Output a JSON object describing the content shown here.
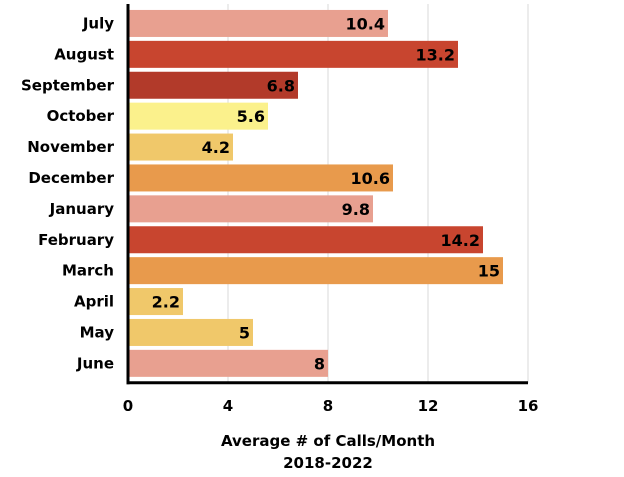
{
  "chart_data": {
    "type": "bar",
    "orientation": "horizontal",
    "categories": [
      "July",
      "August",
      "September",
      "October",
      "November",
      "December",
      "January",
      "February",
      "March",
      "April",
      "May",
      "June"
    ],
    "values": [
      10.4,
      13.2,
      6.8,
      5.6,
      4.2,
      10.6,
      9.8,
      14.2,
      15,
      2.2,
      5,
      8
    ],
    "value_labels": [
      "10.4",
      "13.2",
      "6.8",
      "5.6",
      "4.2",
      "10.6",
      "9.8",
      "14.2",
      "15",
      "2.2",
      "5",
      "8"
    ],
    "bar_colors": [
      "#e8a090",
      "#c8452f",
      "#b23a2a",
      "#fbf18c",
      "#f0c86a",
      "#e89a4c",
      "#e8a090",
      "#c8452f",
      "#e89a4c",
      "#f0c86a",
      "#f0c86a",
      "#e8a090"
    ],
    "xlabel": "Average # of Calls/Month",
    "xlabel_line2": "2018-2022",
    "xlim": [
      0,
      16
    ],
    "xticks": [
      0,
      4,
      8,
      12,
      16
    ],
    "grid": true
  }
}
